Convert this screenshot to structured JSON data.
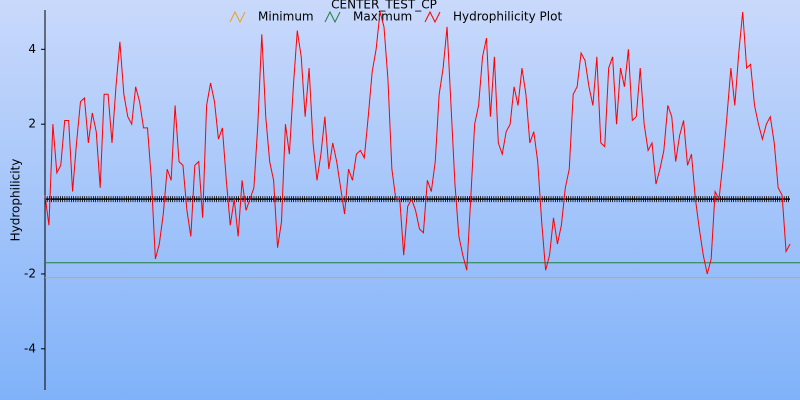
{
  "chart_data": {
    "type": "line",
    "title": "CENTER_TEST_CP",
    "y_label": "Hydrophilicity",
    "ylim": [
      -5.1,
      5.05
    ],
    "yticks": [
      -4,
      -2,
      2,
      4
    ],
    "series": [
      {
        "name": "Minimum",
        "color": "#f0a020",
        "values": [
          -2.1
        ]
      },
      {
        "name": "Maximum",
        "color": "#208040",
        "values": [
          -1.7
        ]
      },
      {
        "name": "Hydrophilicity Plot",
        "color": "#ff0000",
        "values": [
          0.1,
          -0.7,
          2.0,
          0.7,
          0.9,
          2.1,
          2.1,
          0.2,
          1.5,
          2.6,
          2.7,
          1.5,
          2.3,
          1.8,
          0.3,
          2.8,
          2.8,
          1.5,
          3.0,
          4.2,
          2.8,
          2.2,
          2.0,
          3.0,
          2.6,
          1.9,
          1.9,
          0.5,
          -1.6,
          -1.2,
          -0.4,
          0.8,
          0.5,
          2.5,
          1.0,
          0.9,
          -0.3,
          -1.0,
          0.9,
          1.0,
          -0.5,
          2.5,
          3.1,
          2.6,
          1.6,
          1.9,
          0.5,
          -0.7,
          0.0,
          -1.0,
          0.5,
          -0.3,
          0.0,
          0.3,
          2.0,
          4.4,
          2.2,
          1.0,
          0.5,
          -1.3,
          -0.6,
          2.0,
          1.2,
          3.0,
          4.5,
          3.8,
          2.2,
          3.5,
          1.5,
          0.5,
          1.2,
          2.2,
          0.8,
          1.5,
          1.0,
          0.3,
          -0.4,
          0.8,
          0.5,
          1.2,
          1.3,
          1.1,
          2.2,
          3.4,
          4.0,
          5.0,
          4.6,
          3.2,
          0.8,
          0.0,
          0.0,
          -1.5,
          -0.2,
          0.0,
          -0.3,
          -0.8,
          -0.9,
          0.5,
          0.2,
          1.0,
          2.8,
          3.5,
          4.6,
          2.5,
          0.4,
          -1.0,
          -1.5,
          -1.9,
          0.0,
          2.0,
          2.5,
          3.8,
          4.3,
          2.2,
          3.8,
          1.5,
          1.2,
          1.8,
          2.0,
          3.0,
          2.5,
          3.5,
          2.8,
          1.5,
          1.8,
          1.0,
          -0.6,
          -1.9,
          -1.5,
          -0.5,
          -1.2,
          -0.7,
          0.3,
          0.8,
          2.8,
          3.0,
          3.9,
          3.7,
          3.0,
          2.5,
          3.8,
          1.5,
          1.4,
          3.5,
          3.8,
          2.0,
          3.5,
          3.0,
          4.0,
          2.1,
          2.2,
          3.5,
          2.0,
          1.3,
          1.5,
          0.4,
          0.8,
          1.3,
          2.5,
          2.2,
          1.0,
          1.7,
          2.1,
          0.9,
          1.2,
          0.0,
          -0.8,
          -1.5,
          -2.0,
          -1.6,
          0.2,
          0.0,
          1.0,
          2.2,
          3.5,
          2.5,
          3.9,
          5.0,
          3.5,
          3.6,
          2.5,
          2.0,
          1.6,
          2.0,
          2.2,
          1.5,
          0.3,
          0.1,
          -1.4,
          -1.2
        ]
      }
    ]
  }
}
